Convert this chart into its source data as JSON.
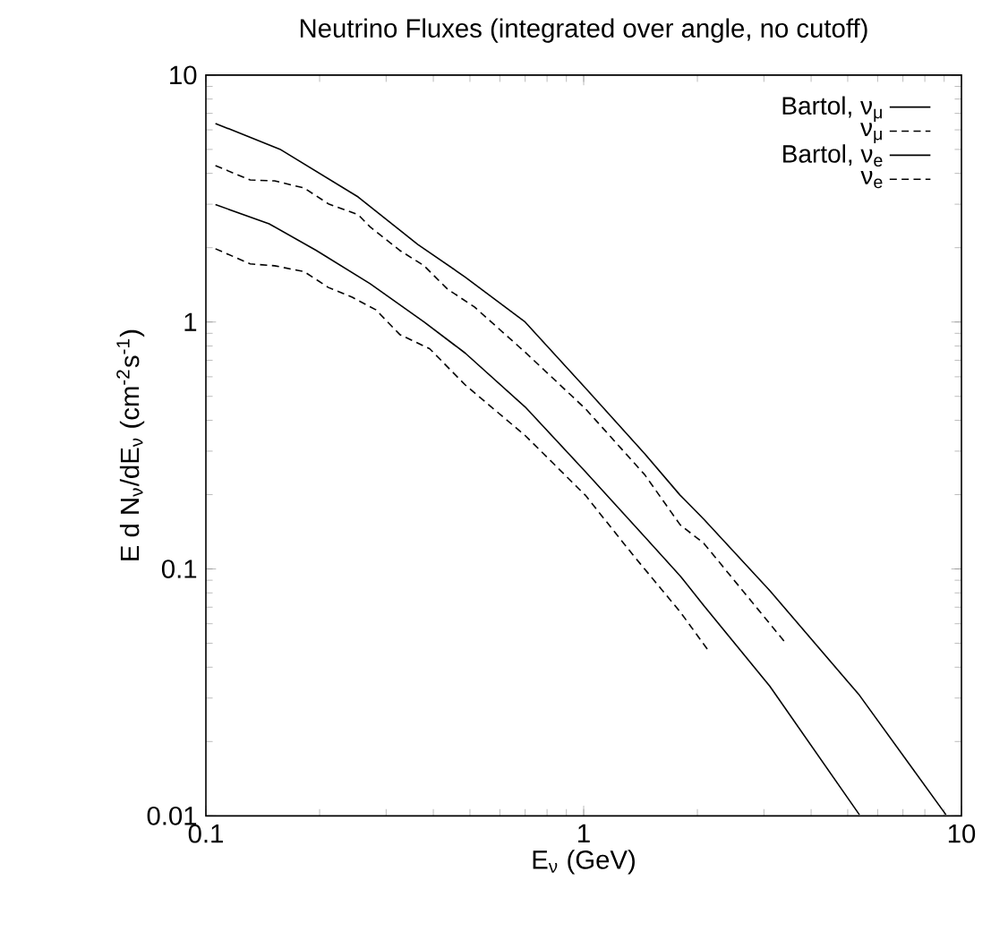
{
  "chart_data": {
    "type": "line",
    "title": "Neutrino Fluxes (integrated over angle, no cutoff)",
    "xlabel": "E$_{ν}$   (GeV)",
    "ylabel": "E d N$_{ν}$/dE$_{ν}$    (cm$^{-2}$s$^{-1}$)",
    "log": "xy",
    "xlim": [
      0.1,
      10
    ],
    "ylim": [
      0.01,
      10
    ],
    "xticks": [
      0.1,
      1,
      10
    ],
    "yticks": [
      0.01,
      0.1,
      1,
      10
    ],
    "legend": "top right",
    "series": [
      {
        "name": "Bartol, ν$_{μ}$",
        "color": "#000000",
        "line_style": "solid",
        "x": [
          0.106,
          0.157,
          0.253,
          0.364,
          0.486,
          0.7,
          1.01,
          1.45,
          1.8,
          2.08,
          3.11,
          5.37,
          9.1
        ],
        "values": [
          6.37,
          5.01,
          3.21,
          2.06,
          1.52,
          1.0,
          0.541,
          0.293,
          0.199,
          0.159,
          0.0817,
          0.0308,
          0.0101
        ]
      },
      {
        "name": "ν$_{μ}$",
        "color": "#000000",
        "line_style": "dashed",
        "x": [
          0.106,
          0.131,
          0.152,
          0.182,
          0.211,
          0.253,
          0.272,
          0.326,
          0.378,
          0.436,
          0.514,
          0.7,
          1.01,
          1.45,
          1.8,
          2.08,
          3.4
        ],
        "values": [
          4.3,
          3.76,
          3.73,
          3.49,
          3.01,
          2.72,
          2.43,
          1.95,
          1.69,
          1.36,
          1.15,
          0.755,
          0.446,
          0.241,
          0.151,
          0.127,
          0.0508
        ]
      },
      {
        "name": "Bartol, ν$_{e}$",
        "color": "#000000",
        "line_style": "solid",
        "x": [
          0.106,
          0.147,
          0.196,
          0.272,
          0.378,
          0.486,
          0.7,
          1.01,
          1.45,
          1.8,
          2.08,
          3.11,
          5.37
        ],
        "values": [
          2.99,
          2.5,
          1.95,
          1.43,
          1.0,
          0.748,
          0.453,
          0.248,
          0.135,
          0.0938,
          0.071,
          0.0335,
          0.0101
        ]
      },
      {
        "name": "ν$_{e}$",
        "color": "#000000",
        "line_style": "dashed",
        "x": [
          0.106,
          0.131,
          0.152,
          0.182,
          0.211,
          0.244,
          0.282,
          0.326,
          0.391,
          0.486,
          0.7,
          1.01,
          1.35,
          1.8,
          2.15
        ],
        "values": [
          1.98,
          1.72,
          1.69,
          1.6,
          1.38,
          1.26,
          1.12,
          0.89,
          0.78,
          0.556,
          0.347,
          0.199,
          0.114,
          0.0671,
          0.0462
        ]
      }
    ]
  }
}
